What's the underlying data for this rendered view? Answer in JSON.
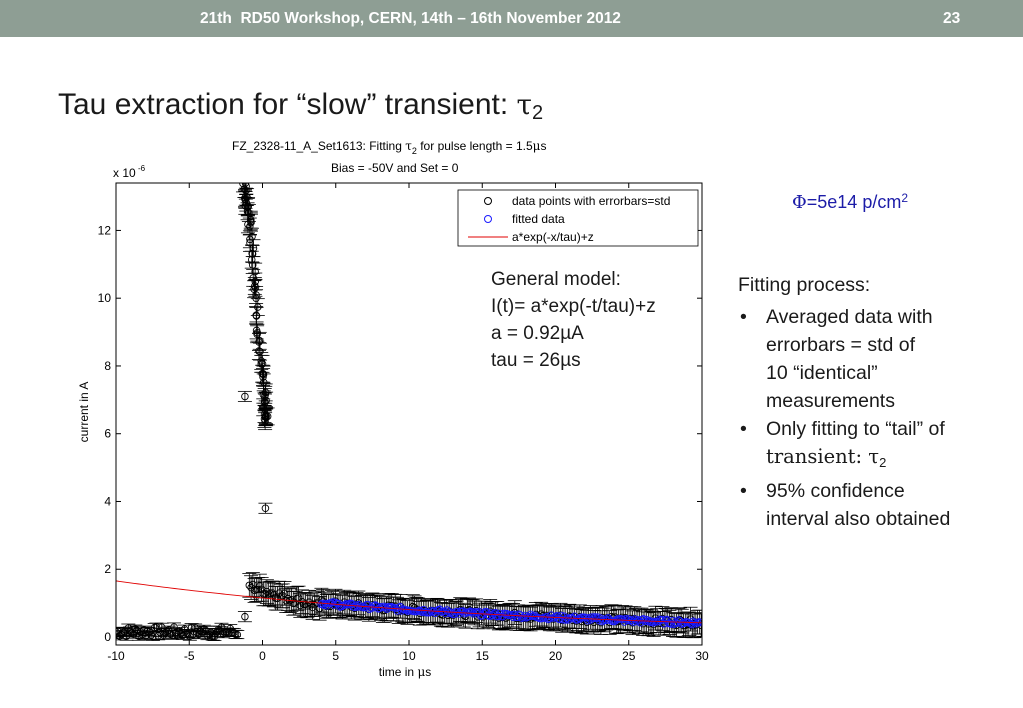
{
  "header": {
    "title": "21th  RD50 Workshop, CERN, 14th – 16th November 2012",
    "slide_number": "23"
  },
  "slide_title": {
    "text": "Tau extraction for “slow” transient: ",
    "tau_symbol": "τ",
    "tau_subscript": "2"
  },
  "fluence_note": {
    "phi": "Φ",
    "text": "=5e14 p/cm",
    "sup": "2"
  },
  "model_note": {
    "lines": [
      "General model:",
      "I(t)= a*exp(-t/tau)+z",
      "a = 0.92µA",
      "tau = 26µs"
    ]
  },
  "fitting_process": {
    "title": "Fitting process:",
    "bullets": [
      [
        "Averaged data with",
        "errorbars = std of",
        "10 “identical”",
        "measurements"
      ],
      [
        "Only fitting to “tail” of",
        "transient: τ",
        "2"
      ],
      [
        "95% confidence",
        "interval also obtained"
      ]
    ]
  },
  "colors": {
    "header_bg": "#8e9e94",
    "data_points": "#000000",
    "fitted_data": "#1a1aff",
    "fit_curve": "#e00000",
    "fluence_text": "#1c1ca8"
  },
  "chart_data": {
    "type": "scatter",
    "title_line1_prefix": "FZ_2328-11_A_Set1613: Fitting ",
    "title_tau": "τ",
    "title_tau_sub": "2",
    "title_line1_suffix": " for pulse length = 1.5",
    "title_mu": "μ",
    "title_s": "s",
    "title_line2": "Bias = -50V and Set = 0",
    "xlabel_prefix": "time in ",
    "xlabel_mu": "μ",
    "xlabel_s": "s",
    "ylabel": "current in A",
    "y_exponent_label": "x 10",
    "y_exponent": "-6",
    "xlim": [
      -10,
      30
    ],
    "ylim": [
      0,
      13.4
    ],
    "y_scale": 1e-06,
    "x_ticks": [
      -10,
      -5,
      0,
      5,
      10,
      15,
      20,
      25,
      30
    ],
    "y_ticks": [
      0,
      2,
      4,
      6,
      8,
      10,
      12
    ],
    "legend": {
      "position": "top-right",
      "entries": [
        "data points with errorbars=std",
        "fitted data",
        "a*exp(-x/tau)+z"
      ]
    },
    "model": {
      "a": 0.92,
      "tau": 26,
      "z": 0.08,
      "offset_t": 4,
      "baseline_start": 1.5
    },
    "series": [
      {
        "name": "data points with errorbars=std",
        "segments": [
          {
            "part": "baseline",
            "x_range": [
              -10,
              -1.7
            ],
            "y_mean": 0.15,
            "y_jitter": 0.15,
            "err": 0.12
          },
          {
            "part": "plateau",
            "points": [
              [
                -1.3,
                13.35
              ],
              [
                -1.1,
                12.9
              ],
              [
                -0.9,
                12.4
              ],
              [
                -0.7,
                11.6
              ],
              [
                -0.5,
                10.5
              ],
              [
                -0.3,
                9.2
              ],
              [
                -0.1,
                8.0
              ],
              [
                0.1,
                7.2
              ],
              [
                0.2,
                6.6
              ],
              [
                0.3,
                6.35
              ]
            ],
            "err": 0.25
          },
          {
            "part": "isolated",
            "points": [
              [
                -1.2,
                7.1
              ],
              [
                0.2,
                3.8
              ],
              [
                -1.2,
                0.6
              ]
            ],
            "err": 0.15
          },
          {
            "part": "tail",
            "x_range": [
              -0.9,
              30
            ],
            "err": 0.35
          }
        ]
      },
      {
        "name": "fitted data",
        "x_range": [
          4,
          30
        ]
      },
      {
        "name": "a*exp(-x/tau)+z",
        "x_range": [
          -10,
          30
        ]
      }
    ]
  }
}
